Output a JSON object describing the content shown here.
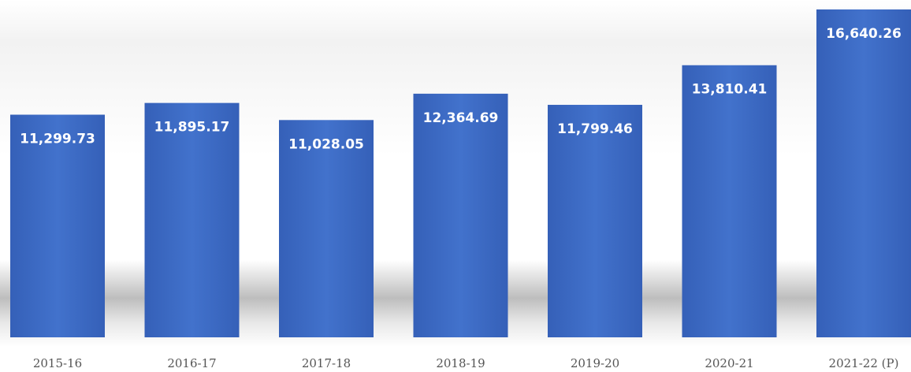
{
  "chart_data": {
    "type": "bar",
    "title": "",
    "xlabel": "",
    "ylabel": "",
    "categories": [
      "2015-16",
      "2016-17",
      "2017-18",
      "2018-19",
      "2019-20",
      "2020-21",
      "2021-22 (P)"
    ],
    "values": [
      11299.73,
      11895.17,
      11028.05,
      12364.69,
      11799.46,
      13810.41,
      16640.26
    ],
    "value_labels": [
      "11,299.73",
      "11,895.17",
      "11,028.05",
      "12,364.69",
      "11,799.46",
      "13,810.41",
      "16,640.26"
    ],
    "grid": false,
    "legend": "none",
    "bar_color": "#3f6cc6",
    "bar_color_dark": "#2f58b0",
    "label_color": "#ffffff"
  }
}
